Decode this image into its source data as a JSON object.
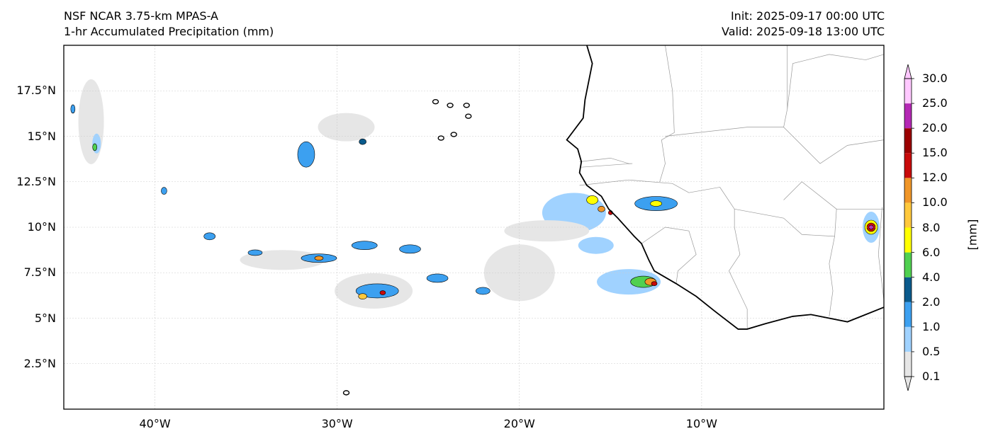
{
  "header": {
    "model": "NSF NCAR 3.75-km MPAS-A",
    "field": "1-hr Accumulated Precipitation (mm)",
    "init": "Init: 2025-09-17 00:00 UTC",
    "valid": "Valid: 2025-09-18 13:00 UTC"
  },
  "map": {
    "lon_range": [
      -45,
      0
    ],
    "lat_range": [
      0,
      20
    ],
    "lat_ticks": [
      "17.5°N",
      "15°N",
      "12.5°N",
      "10°N",
      "7.5°N",
      "5°N",
      "2.5°N"
    ],
    "lat_values": [
      17.5,
      15,
      12.5,
      10,
      7.5,
      5,
      2.5
    ],
    "lon_ticks": [
      "40°W",
      "30°W",
      "20°W",
      "10°W"
    ],
    "lon_values": [
      -40,
      -30,
      -20,
      -10
    ],
    "gridlines": true
  },
  "colorbar": {
    "units": "[mm]",
    "levels": [
      "0.1",
      "0.5",
      "1.0",
      "2.0",
      "4.0",
      "6.0",
      "8.0",
      "10.0",
      "12.0",
      "15.0",
      "20.0",
      "25.0",
      "30.0"
    ],
    "colors": [
      "#e6e6e6",
      "#a0d2ff",
      "#3ca0f0",
      "#0a5a8c",
      "#50d050",
      "#ffff00",
      "#ffc83c",
      "#f09628",
      "#c80a0a",
      "#9b0000",
      "#b428b4",
      "#ffc8ff"
    ],
    "extend": "both"
  },
  "precip_cells": [
    {
      "lon": -43.5,
      "lat": 15.8,
      "cat": 0,
      "rx": 18,
      "ry": 60
    },
    {
      "lon": -43.2,
      "lat": 14.6,
      "cat": 1,
      "rx": 6,
      "ry": 14
    },
    {
      "lon": -43.3,
      "lat": 14.4,
      "cat": 4,
      "rx": 3,
      "ry": 5
    },
    {
      "lon": -44.5,
      "lat": 16.5,
      "cat": 2,
      "rx": 3,
      "ry": 6
    },
    {
      "lon": -29.5,
      "lat": 15.5,
      "cat": 0,
      "rx": 40,
      "ry": 20
    },
    {
      "lon": -28.6,
      "lat": 14.7,
      "cat": 3,
      "rx": 5,
      "ry": 4
    },
    {
      "lon": -31.7,
      "lat": 14.0,
      "cat": 2,
      "rx": 12,
      "ry": 18
    },
    {
      "lon": -17.0,
      "lat": 10.8,
      "cat": 1,
      "rx": 45,
      "ry": 28
    },
    {
      "lon": -15.8,
      "lat": 9.0,
      "cat": 1,
      "rx": 25,
      "ry": 12
    },
    {
      "lon": -16.0,
      "lat": 11.5,
      "cat": 5,
      "rx": 8,
      "ry": 6
    },
    {
      "lon": -15.5,
      "lat": 11.0,
      "cat": 7,
      "rx": 5,
      "ry": 4
    },
    {
      "lon": -15.0,
      "lat": 10.8,
      "cat": 8,
      "rx": 3,
      "ry": 3
    },
    {
      "lon": -14.0,
      "lat": 7.0,
      "cat": 1,
      "rx": 45,
      "ry": 18
    },
    {
      "lon": -13.2,
      "lat": 7.0,
      "cat": 4,
      "rx": 18,
      "ry": 8
    },
    {
      "lon": -12.8,
      "lat": 7.0,
      "cat": 7,
      "rx": 8,
      "ry": 5
    },
    {
      "lon": -12.6,
      "lat": 6.9,
      "cat": 8,
      "rx": 4,
      "ry": 3
    },
    {
      "lon": -12.5,
      "lat": 11.3,
      "cat": 2,
      "rx": 30,
      "ry": 10
    },
    {
      "lon": -12.5,
      "lat": 11.3,
      "cat": 5,
      "rx": 8,
      "ry": 4
    },
    {
      "lon": -0.7,
      "lat": 10.0,
      "cat": 1,
      "rx": 12,
      "ry": 22
    },
    {
      "lon": -0.7,
      "lat": 10.0,
      "cat": 5,
      "rx": 9,
      "ry": 10
    },
    {
      "lon": -0.7,
      "lat": 10.0,
      "cat": 8,
      "rx": 6,
      "ry": 6
    },
    {
      "lon": -0.7,
      "lat": 10.0,
      "cat": 10,
      "rx": 3,
      "ry": 3
    },
    {
      "lon": -33.0,
      "lat": 8.2,
      "cat": 0,
      "rx": 60,
      "ry": 14
    },
    {
      "lon": -31.0,
      "lat": 8.3,
      "cat": 2,
      "rx": 25,
      "ry": 6
    },
    {
      "lon": -31.0,
      "lat": 8.3,
      "cat": 7,
      "rx": 6,
      "ry": 3
    },
    {
      "lon": -28.5,
      "lat": 9.0,
      "cat": 2,
      "rx": 18,
      "ry": 6
    },
    {
      "lon": -28.0,
      "lat": 6.5,
      "cat": 0,
      "rx": 55,
      "ry": 25
    },
    {
      "lon": -27.8,
      "lat": 6.5,
      "cat": 2,
      "rx": 30,
      "ry": 10
    },
    {
      "lon": -28.6,
      "lat": 6.2,
      "cat": 6,
      "rx": 6,
      "ry": 4
    },
    {
      "lon": -27.5,
      "lat": 6.4,
      "cat": 8,
      "rx": 4,
      "ry": 3
    },
    {
      "lon": -26.0,
      "lat": 8.8,
      "cat": 2,
      "rx": 15,
      "ry": 6
    },
    {
      "lon": -24.5,
      "lat": 7.2,
      "cat": 2,
      "rx": 15,
      "ry": 6
    },
    {
      "lon": -22.0,
      "lat": 6.5,
      "cat": 2,
      "rx": 10,
      "ry": 5
    },
    {
      "lon": -20.0,
      "lat": 7.5,
      "cat": 0,
      "rx": 50,
      "ry": 40
    },
    {
      "lon": -18.5,
      "lat": 9.8,
      "cat": 0,
      "rx": 60,
      "ry": 15
    },
    {
      "lon": -37.0,
      "lat": 9.5,
      "cat": 2,
      "rx": 8,
      "ry": 5
    },
    {
      "lon": -39.5,
      "lat": 12.0,
      "cat": 2,
      "rx": 4,
      "ry": 5
    },
    {
      "lon": -34.5,
      "lat": 8.6,
      "cat": 2,
      "rx": 10,
      "ry": 4
    }
  ],
  "islands": [
    {
      "lon": -24.6,
      "lat": 16.9
    },
    {
      "lon": -23.8,
      "lat": 16.7
    },
    {
      "lon": -22.9,
      "lat": 16.7
    },
    {
      "lon": -22.8,
      "lat": 16.1
    },
    {
      "lon": -23.6,
      "lat": 15.1
    },
    {
      "lon": -24.3,
      "lat": 14.9
    },
    {
      "lon": -29.5,
      "lat": 0.9
    }
  ],
  "coastline": [
    [
      -16.3,
      20.0
    ],
    [
      -16.0,
      19.0
    ],
    [
      -16.4,
      17.0
    ],
    [
      -16.5,
      16.0
    ],
    [
      -17.4,
      14.8
    ],
    [
      -16.8,
      14.3
    ],
    [
      -16.6,
      13.6
    ],
    [
      -16.7,
      13.0
    ],
    [
      -16.3,
      12.3
    ],
    [
      -15.5,
      11.7
    ],
    [
      -15.1,
      11.0
    ],
    [
      -14.6,
      10.5
    ],
    [
      -13.7,
      9.5
    ],
    [
      -13.3,
      9.1
    ],
    [
      -12.9,
      8.2
    ],
    [
      -12.6,
      7.6
    ],
    [
      -11.4,
      6.9
    ],
    [
      -10.3,
      6.2
    ],
    [
      -9.3,
      5.4
    ],
    [
      -8.0,
      4.4
    ],
    [
      -7.5,
      4.4
    ],
    [
      -6.5,
      4.7
    ],
    [
      -5.0,
      5.1
    ],
    [
      -4.0,
      5.2
    ],
    [
      -2.0,
      4.8
    ],
    [
      -1.0,
      5.2
    ],
    [
      0.0,
      5.6
    ]
  ],
  "borders": [
    [
      [
        -12.0,
        20.0
      ],
      [
        -11.6,
        17.5
      ],
      [
        -11.5,
        15.2
      ],
      [
        -12.2,
        14.8
      ],
      [
        -12.0,
        13.5
      ],
      [
        -12.3,
        12.5
      ]
    ],
    [
      [
        -16.7,
        12.3
      ],
      [
        -14.0,
        12.6
      ],
      [
        -11.6,
        12.4
      ],
      [
        -10.7,
        11.9
      ]
    ],
    [
      [
        -16.7,
        13.6
      ],
      [
        -15.0,
        13.8
      ],
      [
        -14.0,
        13.5
      ],
      [
        -13.8,
        13.5
      ],
      [
        -16.6,
        13.3
      ]
    ],
    [
      [
        -13.3,
        9.1
      ],
      [
        -12.0,
        10.0
      ],
      [
        -10.7,
        9.8
      ],
      [
        -10.3,
        8.5
      ],
      [
        -11.3,
        7.6
      ],
      [
        -11.4,
        6.9
      ]
    ],
    [
      [
        -10.7,
        11.9
      ],
      [
        -9.0,
        12.2
      ],
      [
        -8.2,
        11.0
      ],
      [
        -8.2,
        10.0
      ],
      [
        -7.9,
        8.5
      ],
      [
        -8.5,
        7.6
      ],
      [
        -7.5,
        5.5
      ],
      [
        -7.5,
        4.4
      ]
    ],
    [
      [
        -12.0,
        15.0
      ],
      [
        -7.5,
        15.5
      ],
      [
        -5.5,
        15.5
      ],
      [
        -5.3,
        16.5
      ],
      [
        -5.3,
        20.0
      ]
    ],
    [
      [
        -5.3,
        16.5
      ],
      [
        -5.0,
        19.0
      ],
      [
        -3.0,
        19.5
      ],
      [
        -1.0,
        19.2
      ],
      [
        0.0,
        19.5
      ]
    ],
    [
      [
        -5.5,
        15.5
      ],
      [
        -4.0,
        14.0
      ],
      [
        -3.5,
        13.5
      ],
      [
        -2.0,
        14.5
      ],
      [
        0.0,
        14.8
      ]
    ],
    [
      [
        -8.2,
        11.0
      ],
      [
        -5.5,
        10.5
      ],
      [
        -4.5,
        9.6
      ],
      [
        -2.7,
        9.5
      ],
      [
        -2.6,
        11.0
      ],
      [
        0.0,
        11.0
      ]
    ],
    [
      [
        -2.6,
        11.0
      ],
      [
        -4.5,
        12.5
      ],
      [
        -5.5,
        11.5
      ]
    ],
    [
      [
        -2.7,
        9.5
      ],
      [
        -3.0,
        8.0
      ],
      [
        -2.8,
        6.5
      ],
      [
        -3.0,
        5.1
      ]
    ],
    [
      [
        -0.1,
        11.1
      ],
      [
        -0.3,
        8.5
      ],
      [
        0.0,
        6.0
      ]
    ]
  ]
}
